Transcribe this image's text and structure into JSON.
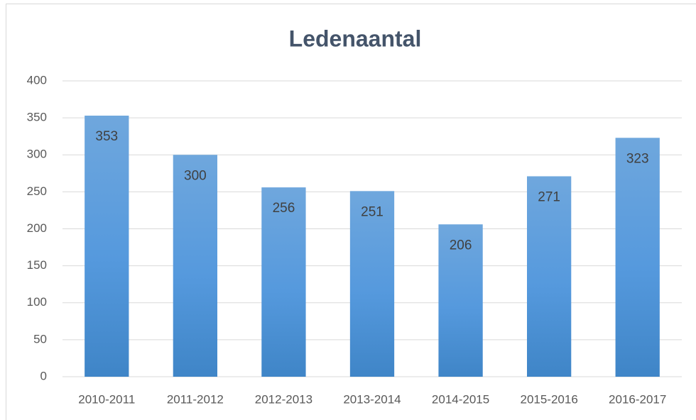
{
  "chart_data": {
    "type": "bar",
    "title": "Ledenaantal",
    "categories": [
      "2010-2011",
      "2011-2012",
      "2012-2013",
      "2013-2014",
      "2014-2015",
      "2015-2016",
      "2016-2017"
    ],
    "values": [
      353,
      300,
      256,
      251,
      206,
      271,
      323
    ],
    "color": "#5b9bd5",
    "ylim": [
      0,
      400
    ],
    "yticks": [
      0,
      50,
      100,
      150,
      200,
      250,
      300,
      350,
      400
    ],
    "grid": true
  }
}
